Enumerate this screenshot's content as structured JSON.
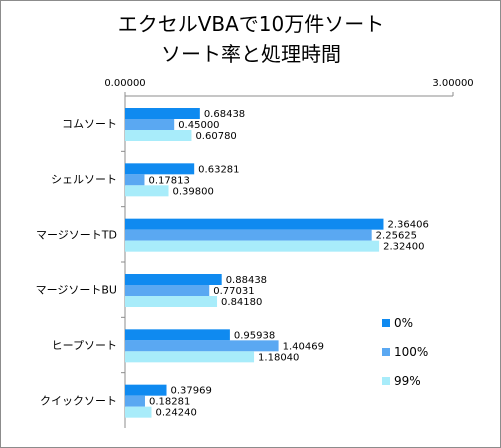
{
  "chart_data": {
    "type": "bar",
    "orientation": "horizontal",
    "title_lines": [
      "エクセルVBAで10万件ソート",
      "ソート率と処理時間"
    ],
    "x_tick_labels": [
      "0.00000",
      "3.00000"
    ],
    "xlim": [
      0,
      3
    ],
    "grid": false,
    "legend_position": "right",
    "categories": [
      "コムソート",
      "シェルソート",
      "マージソートTD",
      "マージソートBU",
      "ヒープソート",
      "クイックソート"
    ],
    "series": [
      {
        "name": "0%",
        "color": "#0f8af0",
        "values": [
          0.68438,
          0.63281,
          2.36406,
          0.88438,
          0.95938,
          0.37969
        ],
        "labels": [
          "0.68438",
          "0.63281",
          "2.36406",
          "0.88438",
          "0.95938",
          "0.37969"
        ]
      },
      {
        "name": "100%",
        "color": "#5aa8f2",
        "values": [
          0.45,
          0.17813,
          2.25625,
          0.77031,
          1.40469,
          0.18281
        ],
        "labels": [
          "0.45000",
          "0.17813",
          "2.25625",
          "0.77031",
          "1.40469",
          "0.18281"
        ]
      },
      {
        "name": "99%",
        "color": "#a8ecfa",
        "values": [
          0.6078,
          0.398,
          2.324,
          0.8418,
          1.1804,
          0.2424
        ],
        "labels": [
          "0.60780",
          "0.39800",
          "2.32400",
          "0.84180",
          "1.18040",
          "0.24240"
        ]
      }
    ]
  }
}
